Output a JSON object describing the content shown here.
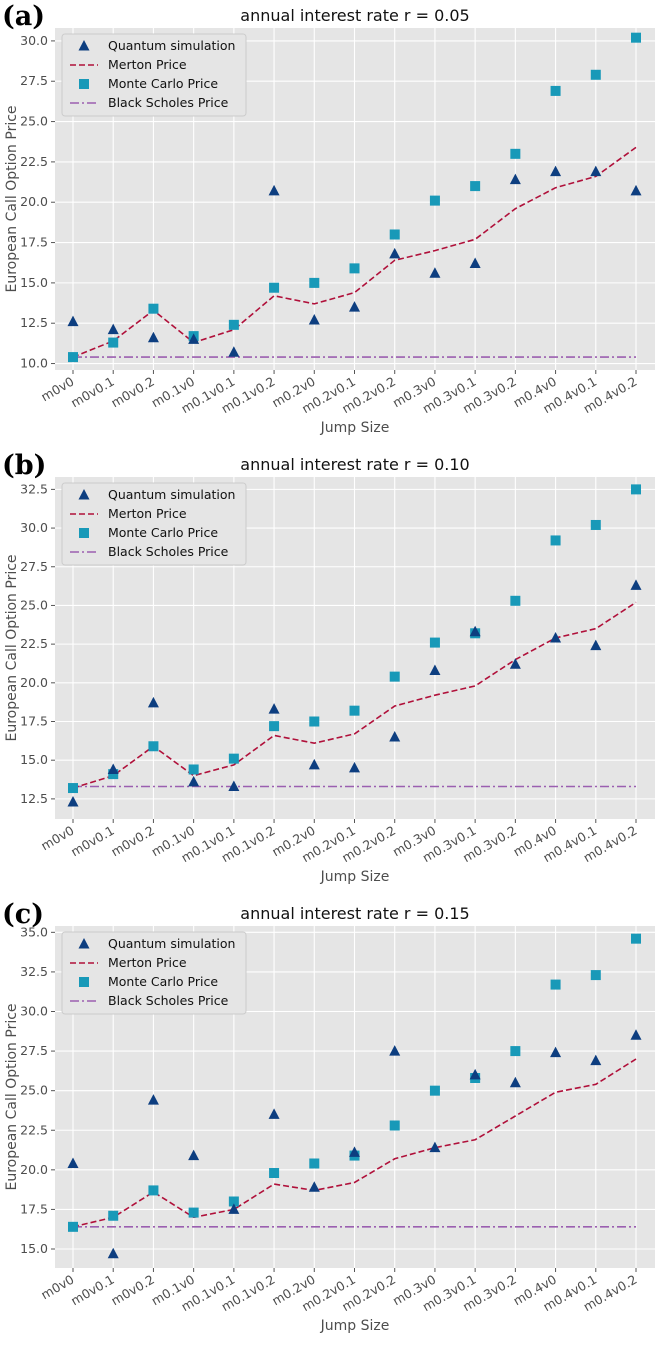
{
  "chart_data": [
    {
      "type": "scatter",
      "panel_label": "(a)",
      "title": "annual interest rate r = 0.05",
      "xlabel": "Jump Size",
      "ylabel": "European Call Option Price",
      "categories": [
        "m0v0",
        "m0v0.1",
        "m0v0.2",
        "m0.1v0",
        "m0.1v0.1",
        "m0.1v0.2",
        "m0.2v0",
        "m0.2v0.1",
        "m0.2v0.2",
        "m0.3v0",
        "m0.3v0.1",
        "m0.3v0.2",
        "m0.4v0",
        "m0.4v0.1",
        "m0.4v0.2"
      ],
      "ylim": [
        9.6,
        30.8
      ],
      "yticks": [
        "10.0",
        "12.5",
        "15.0",
        "17.5",
        "20.0",
        "22.5",
        "25.0",
        "27.5",
        "30.0"
      ],
      "grid": true,
      "legend_position": "top-left",
      "series": [
        {
          "name": "Quantum simulation",
          "kind": "triangle",
          "color": "#0d3e80",
          "values": [
            12.6,
            12.1,
            11.6,
            11.5,
            10.7,
            20.7,
            12.7,
            13.5,
            16.8,
            15.6,
            16.2,
            21.4,
            21.9,
            21.9,
            20.7
          ]
        },
        {
          "name": "Merton Price",
          "kind": "dashed-line",
          "color": "#b0103a",
          "values": [
            10.4,
            11.4,
            13.3,
            11.3,
            12.1,
            14.2,
            13.7,
            14.4,
            16.4,
            17.0,
            17.7,
            19.6,
            20.9,
            21.6,
            23.4
          ]
        },
        {
          "name": "Monte Carlo Price",
          "kind": "square",
          "color": "#1899b8",
          "values": [
            10.4,
            11.3,
            13.4,
            11.7,
            12.4,
            14.7,
            15.0,
            15.9,
            18.0,
            20.1,
            21.0,
            23.0,
            26.9,
            27.9,
            30.2
          ]
        },
        {
          "name": "Black Scholes Price",
          "kind": "dashdot-line",
          "color": "#9b5fb0",
          "values": [
            10.4,
            10.4,
            10.4,
            10.4,
            10.4,
            10.4,
            10.4,
            10.4,
            10.4,
            10.4,
            10.4,
            10.4,
            10.4,
            10.4,
            10.4
          ]
        }
      ]
    },
    {
      "type": "scatter",
      "panel_label": "(b)",
      "title": "annual interest rate r = 0.10",
      "xlabel": "Jump Size",
      "ylabel": "European Call Option Price",
      "categories": [
        "m0v0",
        "m0v0.1",
        "m0v0.2",
        "m0.1v0",
        "m0.1v0.1",
        "m0.1v0.2",
        "m0.2v0",
        "m0.2v0.1",
        "m0.2v0.2",
        "m0.3v0",
        "m0.3v0.1",
        "m0.3v0.2",
        "m0.4v0",
        "m0.4v0.1",
        "m0.4v0.2"
      ],
      "ylim": [
        11.2,
        33.3
      ],
      "yticks": [
        "12.5",
        "15.0",
        "17.5",
        "20.0",
        "22.5",
        "25.0",
        "27.5",
        "30.0",
        "32.5"
      ],
      "grid": true,
      "legend_position": "top-left",
      "series": [
        {
          "name": "Quantum simulation",
          "kind": "triangle",
          "color": "#0d3e80",
          "values": [
            12.3,
            14.4,
            18.7,
            13.6,
            13.3,
            18.3,
            14.7,
            14.5,
            16.5,
            20.8,
            23.3,
            21.2,
            22.9,
            22.4,
            26.3
          ]
        },
        {
          "name": "Merton Price",
          "kind": "dashed-line",
          "color": "#b0103a",
          "values": [
            13.2,
            14.0,
            15.9,
            14.0,
            14.7,
            16.6,
            16.1,
            16.7,
            18.5,
            19.2,
            19.8,
            21.5,
            22.9,
            23.5,
            25.2
          ]
        },
        {
          "name": "Monte Carlo Price",
          "kind": "square",
          "color": "#1899b8",
          "values": [
            13.2,
            14.1,
            15.9,
            14.4,
            15.1,
            17.2,
            17.5,
            18.2,
            20.4,
            22.6,
            23.2,
            25.3,
            29.2,
            30.2,
            32.5
          ]
        },
        {
          "name": "Black Scholes Price",
          "kind": "dashdot-line",
          "color": "#9b5fb0",
          "values": [
            13.3,
            13.3,
            13.3,
            13.3,
            13.3,
            13.3,
            13.3,
            13.3,
            13.3,
            13.3,
            13.3,
            13.3,
            13.3,
            13.3,
            13.3
          ]
        }
      ]
    },
    {
      "type": "scatter",
      "panel_label": "(c)",
      "title": "annual interest rate r = 0.15",
      "xlabel": "Jump Size",
      "ylabel": "European Call Option Price",
      "categories": [
        "m0v0",
        "m0v0.1",
        "m0v0.2",
        "m0.1v0",
        "m0.1v0.1",
        "m0.1v0.2",
        "m0.2v0",
        "m0.2v0.1",
        "m0.2v0.2",
        "m0.3v0",
        "m0.3v0.1",
        "m0.3v0.2",
        "m0.4v0",
        "m0.4v0.1",
        "m0.4v0.2"
      ],
      "ylim": [
        13.8,
        35.4
      ],
      "yticks": [
        "15.0",
        "17.5",
        "20.0",
        "22.5",
        "25.0",
        "27.5",
        "30.0",
        "32.5",
        "35.0"
      ],
      "grid": true,
      "legend_position": "top-left",
      "series": [
        {
          "name": "Quantum simulation",
          "kind": "triangle",
          "color": "#0d3e80",
          "values": [
            20.4,
            14.7,
            24.4,
            20.9,
            17.5,
            23.5,
            18.9,
            21.1,
            27.5,
            21.4,
            26.0,
            25.5,
            27.4,
            26.9,
            28.5
          ]
        },
        {
          "name": "Merton Price",
          "kind": "dashed-line",
          "color": "#b0103a",
          "values": [
            16.4,
            17.0,
            18.6,
            17.0,
            17.5,
            19.1,
            18.7,
            19.2,
            20.7,
            21.4,
            21.9,
            23.4,
            24.9,
            25.4,
            27.0
          ]
        },
        {
          "name": "Monte Carlo Price",
          "kind": "square",
          "color": "#1899b8",
          "values": [
            16.4,
            17.1,
            18.7,
            17.3,
            18.0,
            19.8,
            20.4,
            20.9,
            22.8,
            25.0,
            25.8,
            27.5,
            31.7,
            32.3,
            34.6
          ]
        },
        {
          "name": "Black Scholes Price",
          "kind": "dashdot-line",
          "color": "#9b5fb0",
          "values": [
            16.4,
            16.4,
            16.4,
            16.4,
            16.4,
            16.4,
            16.4,
            16.4,
            16.4,
            16.4,
            16.4,
            16.4,
            16.4,
            16.4,
            16.4
          ]
        }
      ]
    }
  ]
}
